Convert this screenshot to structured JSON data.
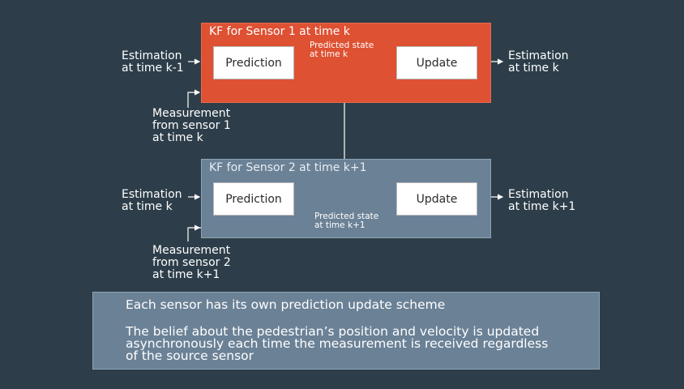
{
  "sensor1": {
    "title": "KF for Sensor 1 at time k",
    "prediction": "Prediction",
    "update": "Update",
    "predicted_state": [
      "Predicted state",
      "at time k"
    ],
    "input_estimation": [
      "Estimation",
      "at time k-1"
    ],
    "output_estimation": [
      "Estimation",
      "at time k"
    ],
    "measurement": [
      "Measurement",
      "from sensor 1",
      "at time k"
    ]
  },
  "sensor2": {
    "title": "KF for Sensor 2 at time k+1",
    "prediction": "Prediction",
    "update": "Update",
    "predicted_state": [
      "Predicted state",
      "at time k+1"
    ],
    "input_estimation": [
      "Estimation",
      "at time k"
    ],
    "output_estimation": [
      "Estimation",
      "at time k+1"
    ],
    "measurement": [
      "Measurement",
      "from sensor 2",
      "at time k+1"
    ]
  },
  "summary": {
    "line1": "Each sensor has its own prediction update scheme",
    "line2": [
      "The belief about the pedestrian’s position and velocity is updated",
      "asynchronously each time the measurement is received regardless",
      "of the source sensor"
    ]
  },
  "colors": {
    "background": "#2d3e4a",
    "sensor1_panel": "#de5133",
    "sensor2_panel": "#6b8196",
    "arrow": "#ffffff"
  }
}
